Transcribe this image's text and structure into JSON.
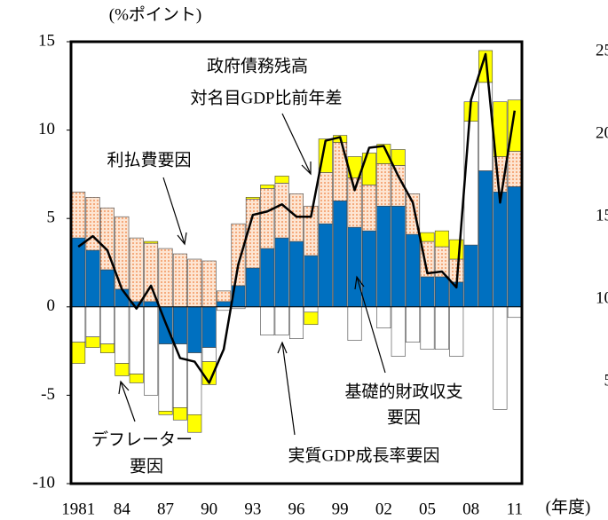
{
  "chart_data": [
    {
      "type": "stacked_bar_line",
      "ylabel": "(%ポイント)",
      "xlabel": "(年度)",
      "categories": [
        "1981",
        null,
        null,
        "84",
        null,
        null,
        "87",
        null,
        null,
        "90",
        null,
        null,
        "93",
        null,
        null,
        "96",
        null,
        null,
        "99",
        null,
        null,
        "02",
        null,
        null,
        "05",
        null,
        null,
        "08",
        null,
        null,
        "11"
      ],
      "ylim": [
        -10,
        15
      ],
      "yticks": [
        -10,
        -5,
        0,
        5,
        10,
        15
      ],
      "series": [
        {
          "color": "#0070c0",
          "values": [
            3.9,
            3.2,
            2.1,
            1.0,
            0.3,
            0.3,
            -2.1,
            -2.1,
            -2.6,
            -2.3,
            0.3,
            1.2,
            2.2,
            3.3,
            3.9,
            3.7,
            2.9,
            4.7,
            6.0,
            4.5,
            4.3,
            5.7,
            5.7,
            4.1,
            1.7,
            1.7,
            1.4,
            3.5,
            7.7,
            6.5,
            6.8
          ]
        },
        {
          "color": "#ffffff",
          "values": [
            -2.0,
            -1.7,
            -2.1,
            -3.2,
            -3.8,
            -5.0,
            -3.8,
            -3.6,
            -3.5,
            -0.8,
            -0.2,
            -0.1,
            0,
            -1.6,
            -1.6,
            -1.8,
            -0.3,
            0,
            0,
            -1.9,
            0,
            -1.2,
            -2.8,
            -2.0,
            -2.4,
            -2.4,
            -2.8,
            7.0,
            5.0,
            -5.8,
            -0.6
          ]
        },
        {
          "color": "#f08040",
          "values": [
            2.6,
            3.0,
            3.5,
            4.1,
            3.6,
            3.3,
            3.3,
            3.0,
            2.7,
            2.6,
            0.6,
            3.5,
            3.9,
            3.4,
            3.1,
            2.7,
            2.8,
            2.9,
            3.3,
            2.8,
            2.6,
            2.4,
            2.3,
            2.3,
            2.0,
            1.7,
            1.3,
            0,
            0,
            2.0,
            2.0
          ]
        },
        {
          "color": "#ffff00",
          "values": [
            -1.2,
            -0.6,
            -0.5,
            -0.7,
            -0.5,
            0.1,
            -0.2,
            -0.7,
            -1.0,
            -1.3,
            0,
            0,
            0.1,
            0.2,
            0.4,
            0,
            -0.7,
            1.9,
            0.4,
            1.2,
            1.8,
            1.1,
            0.9,
            0,
            0.5,
            0.9,
            1.1,
            1.1,
            1.8,
            3.1,
            2.9
          ]
        },
        {
          "type": "line",
          "color": "#000000",
          "values": [
            3.4,
            4.0,
            3.2,
            1.0,
            -0.1,
            1.2,
            -0.9,
            -2.9,
            -3.1,
            -4.3,
            -2.4,
            2.4,
            5.2,
            5.4,
            5.8,
            5.1,
            5.1,
            9.4,
            9.6,
            6.6,
            9.0,
            9.1,
            7.4,
            5.9,
            1.9,
            2.0,
            1.1,
            11.7,
            14.3,
            5.9,
            11.1
          ]
        }
      ],
      "annotations": [
        {
          "lines": [
            "政府債務残高",
            "対名目GDP比前年差"
          ]
        },
        {
          "lines": [
            "利払費要因"
          ]
        },
        {
          "lines": [
            "デフレーター",
            "要因"
          ]
        },
        {
          "lines": [
            "実質GDP成長率要因"
          ]
        },
        {
          "lines": [
            "基礎的財政収支",
            "要因"
          ]
        }
      ]
    },
    {
      "type": "axis_only",
      "ylim": [
        0,
        25
      ],
      "yticks": [
        5,
        10,
        15,
        20,
        25
      ]
    }
  ]
}
